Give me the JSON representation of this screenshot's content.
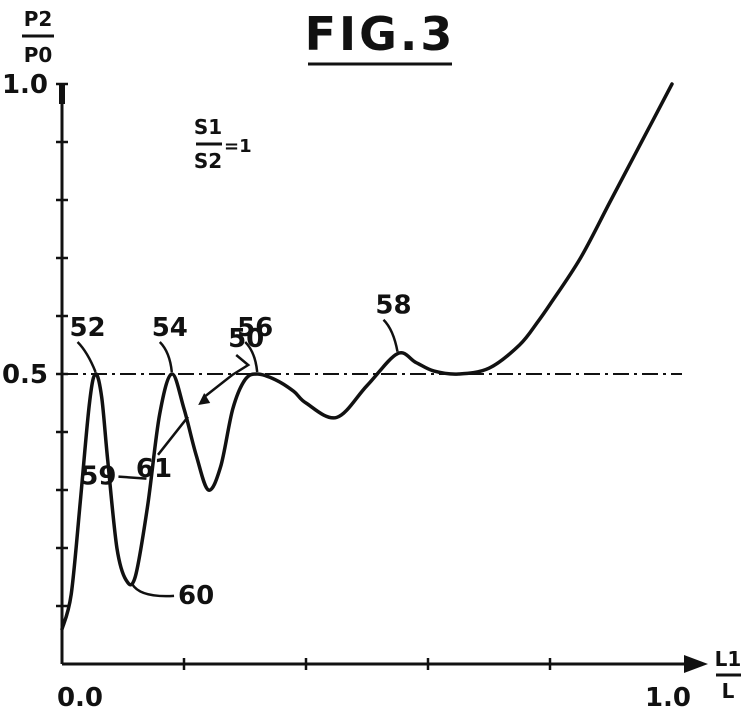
{
  "chart_data": {
    "type": "line",
    "title": "FIG.3",
    "ylabel": {
      "numerator": "P2",
      "denominator": "P0"
    },
    "xlabel": {
      "numerator": "L1",
      "denominator": "L"
    },
    "annotation": {
      "numerator": "S1",
      "denominator": "S2",
      "value": "=1"
    },
    "xlim": [
      0.0,
      1.0
    ],
    "ylim": [
      0.0,
      1.0
    ],
    "x_tick_labels": [
      {
        "value": 0.0,
        "label": "0.0"
      },
      {
        "value": 1.0,
        "label": "1.0"
      }
    ],
    "x_minor_ticks": [
      0.2,
      0.4,
      0.6,
      0.8
    ],
    "y_tick_labels": [
      {
        "value": 0.5,
        "label": "0.5"
      },
      {
        "value": 1.0,
        "label": "1.0"
      }
    ],
    "y_minor_ticks": [
      0.1,
      0.2,
      0.3,
      0.4,
      0.6,
      0.7,
      0.8,
      0.9
    ],
    "reference_line": {
      "y": 0.5,
      "style": "dash-dot"
    },
    "series": [
      {
        "x": [
          0.0,
          0.015,
          0.03,
          0.045,
          0.055,
          0.065,
          0.075,
          0.09,
          0.105,
          0.12,
          0.14,
          0.16,
          0.18,
          0.2,
          0.22,
          0.24,
          0.26,
          0.28,
          0.3,
          0.32,
          0.35,
          0.38,
          0.4,
          0.45,
          0.5,
          0.55,
          0.58,
          0.61,
          0.65,
          0.7,
          0.75,
          0.78,
          0.8,
          0.85,
          0.9,
          0.95,
          1.0
        ],
        "y": [
          0.06,
          0.12,
          0.28,
          0.45,
          0.5,
          0.46,
          0.35,
          0.2,
          0.145,
          0.15,
          0.27,
          0.43,
          0.5,
          0.44,
          0.36,
          0.3,
          0.34,
          0.44,
          0.49,
          0.5,
          0.49,
          0.47,
          0.45,
          0.425,
          0.48,
          0.535,
          0.52,
          0.505,
          0.5,
          0.51,
          0.55,
          0.59,
          0.62,
          0.7,
          0.8,
          0.9,
          1.0
        ]
      }
    ],
    "labels": [
      {
        "text": "52",
        "x": 0.055,
        "y": 0.5
      },
      {
        "text": "54",
        "x": 0.18,
        "y": 0.5
      },
      {
        "text": "56",
        "x": 0.32,
        "y": 0.5
      },
      {
        "text": "58",
        "x": 0.55,
        "y": 0.535
      },
      {
        "text": "60",
        "x": 0.105,
        "y": 0.145
      },
      {
        "text": "59",
        "x": 0.145,
        "y": 0.33
      },
      {
        "text": "61",
        "x": 0.2,
        "y": 0.44
      },
      {
        "text": "50",
        "x": 0.22,
        "y": 0.45
      }
    ]
  }
}
